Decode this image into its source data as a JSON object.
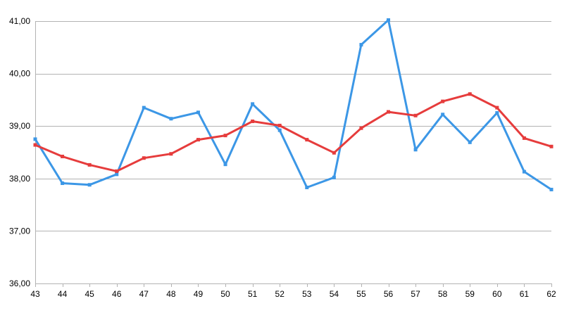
{
  "chart_data": {
    "type": "line",
    "x": [
      43,
      44,
      45,
      46,
      47,
      48,
      49,
      50,
      51,
      52,
      53,
      54,
      55,
      56,
      57,
      58,
      59,
      60,
      61,
      62
    ],
    "x_tick_labels": [
      "43",
      "44",
      "45",
      "46",
      "47",
      "48",
      "49",
      "50",
      "51",
      "52",
      "53",
      "54",
      "55",
      "56",
      "57",
      "58",
      "59",
      "60",
      "61",
      "62"
    ],
    "y_tick_labels": [
      "36,00",
      "37,00",
      "38,00",
      "39,00",
      "40,00",
      "41,00"
    ],
    "ylim": [
      36,
      41
    ],
    "grid": true,
    "legend": "none",
    "title": "",
    "xlabel": "",
    "ylabel": "",
    "series": [
      {
        "color": "#3c97e6",
        "values": [
          38.75,
          37.91,
          37.88,
          38.08,
          39.35,
          39.14,
          39.26,
          38.27,
          39.42,
          38.92,
          37.83,
          38.02,
          40.55,
          41.02,
          38.55,
          39.22,
          38.69,
          39.25,
          38.13,
          37.79
        ]
      },
      {
        "color": "#e63c3c",
        "values": [
          38.64,
          38.42,
          38.26,
          38.14,
          38.39,
          38.47,
          38.74,
          38.82,
          39.09,
          39.01,
          38.74,
          38.49,
          38.96,
          39.27,
          39.2,
          39.47,
          39.61,
          39.35,
          38.77,
          38.61
        ]
      }
    ]
  }
}
